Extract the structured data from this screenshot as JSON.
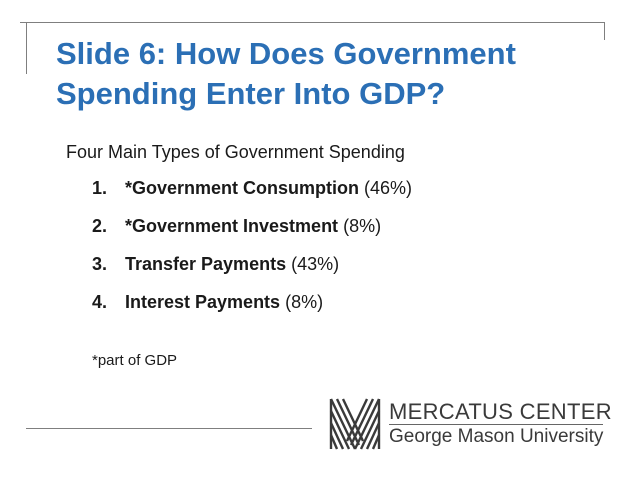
{
  "slide": {
    "title": "Slide 6: How Does Government Spending Enter Into GDP?",
    "subtitle": "Four Main Types of Government Spending",
    "items": [
      {
        "number": "1.",
        "label": "*Government Consumption",
        "share": "(46%)"
      },
      {
        "number": "2.",
        "label": "*Government Investment",
        "share": "(8%)"
      },
      {
        "number": "3.",
        "label": "Transfer Payments",
        "share": "(43%)"
      },
      {
        "number": "4.",
        "label": "Interest Payments",
        "share": "(8%)"
      }
    ],
    "footnote": "*part of GDP"
  },
  "logo": {
    "line1": "MERCATUS CENTER",
    "line2": "George Mason University",
    "color": "#3a3a3a",
    "icon": "mercatus-logo-icon"
  },
  "colors": {
    "title": "#2b6fb5",
    "rule": "#7f7f7f"
  }
}
